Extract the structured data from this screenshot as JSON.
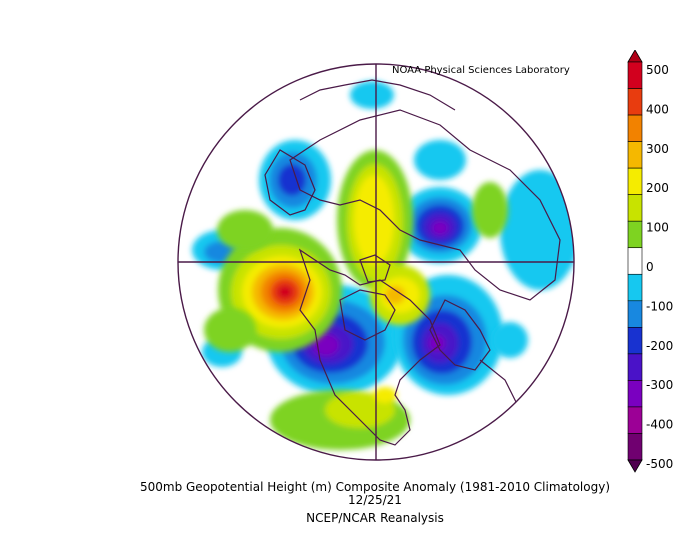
{
  "credit": "NOAA Physical Sciences Laboratory",
  "caption": {
    "line1": "500mb Geopotential Height (m) Composite Anomaly (1981-2010 Climatology)",
    "line2": "12/25/21",
    "line3": "NCEP/NCAR Reanalysis"
  },
  "colorbar": {
    "labels": [
      "500",
      "400",
      "300",
      "200",
      "100",
      "0",
      "-100",
      "-200",
      "-300",
      "-400",
      "-500"
    ],
    "colors": [
      "#d2001e",
      "#e83c0f",
      "#f28200",
      "#f5b800",
      "#f5ec00",
      "#c8e300",
      "#7ed321",
      "#ffffff",
      "#16c8f0",
      "#1888e0",
      "#1832d0",
      "#4a12c8",
      "#7a00c0",
      "#9c0096",
      "#700070"
    ]
  },
  "map": {
    "outline_color": "#4a1a48",
    "anomaly_centers": [
      {
        "sign": "negative",
        "value": -250,
        "location": "western Europe / eastern Atlantic"
      },
      {
        "sign": "negative",
        "value": -330,
        "location": "Greenland / Labrador"
      },
      {
        "sign": "negative",
        "value": -320,
        "location": "western Siberia"
      },
      {
        "sign": "negative",
        "value": -150,
        "location": "eastern Pacific"
      },
      {
        "sign": "positive",
        "value": 460,
        "location": "Aleutian Islands / Bering Sea"
      },
      {
        "sign": "positive",
        "value": 250,
        "location": "Arctic Ocean"
      }
    ]
  }
}
